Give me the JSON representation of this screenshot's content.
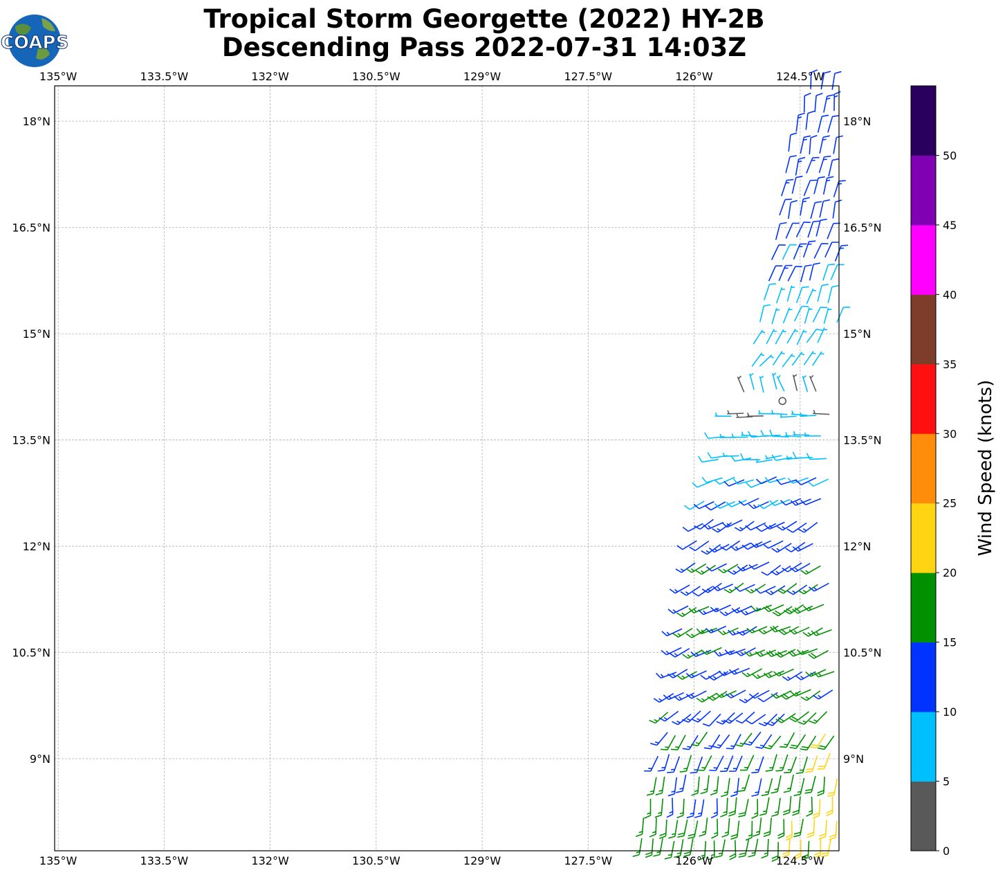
{
  "title_line1": "Tropical Storm Georgette (2022) HY-2B",
  "title_line2": "Descending Pass 2022-07-31 14:03Z",
  "logo_text": "COAPS",
  "map": {
    "lon_range": [
      -135.05,
      -123.95
    ],
    "lat_range": [
      7.7,
      18.5
    ],
    "lon_ticks": [
      {
        "value": -135.0,
        "label": "135°W"
      },
      {
        "value": -133.5,
        "label": "133.5°W"
      },
      {
        "value": -132.0,
        "label": "132°W"
      },
      {
        "value": -130.5,
        "label": "130.5°W"
      },
      {
        "value": -129.0,
        "label": "129°W"
      },
      {
        "value": -127.5,
        "label": "127.5°W"
      },
      {
        "value": -126.0,
        "label": "126°W"
      },
      {
        "value": -124.5,
        "label": "124.5°W"
      }
    ],
    "lat_ticks": [
      {
        "value": 18.0,
        "label": "18°N"
      },
      {
        "value": 16.5,
        "label": "16.5°N"
      },
      {
        "value": 15.0,
        "label": "15°N"
      },
      {
        "value": 13.5,
        "label": "13.5°N"
      },
      {
        "value": 12.0,
        "label": "12°N"
      },
      {
        "value": 10.5,
        "label": "10.5°N"
      },
      {
        "value": 9.0,
        "label": "9°N"
      }
    ],
    "gridlines": true
  },
  "colorbar": {
    "label": "Wind Speed (knots)",
    "range": [
      0,
      55
    ],
    "ticks": [
      0,
      5,
      10,
      15,
      20,
      25,
      30,
      35,
      40,
      45,
      50
    ],
    "bins": [
      {
        "min": 0,
        "max": 5,
        "color": "#595959"
      },
      {
        "min": 5,
        "max": 10,
        "color": "#00bfff"
      },
      {
        "min": 10,
        "max": 15,
        "color": "#0033ff"
      },
      {
        "min": 15,
        "max": 20,
        "color": "#009000"
      },
      {
        "min": 20,
        "max": 25,
        "color": "#ffd413"
      },
      {
        "min": 25,
        "max": 30,
        "color": "#ff8c0a"
      },
      {
        "min": 30,
        "max": 35,
        "color": "#ff1010"
      },
      {
        "min": 35,
        "max": 40,
        "color": "#7e3c2a"
      },
      {
        "min": 40,
        "max": 45,
        "color": "#ff00ff"
      },
      {
        "min": 45,
        "max": 50,
        "color": "#8000b3"
      },
      {
        "min": 50,
        "max": 55,
        "color": "#2a005e"
      }
    ]
  },
  "chart_data": {
    "type": "scatter",
    "description_of_marks": "wind barbs",
    "swath": [
      {
        "lat": 18.45,
        "lon_min": -124.35,
        "lon_max": -124.0,
        "speed": 12,
        "dir": 185
      },
      {
        "lat": 18.15,
        "lon_min": -124.45,
        "lon_max": -124.0,
        "speed": 12,
        "dir": 185
      },
      {
        "lat": 17.85,
        "lon_min": -124.55,
        "lon_max": -124.0,
        "speed": 12,
        "dir": 190
      },
      {
        "lat": 17.55,
        "lon_min": -124.65,
        "lon_max": -124.0,
        "speed": 12,
        "dir": 190
      },
      {
        "lat": 17.25,
        "lon_min": -124.7,
        "lon_max": -124.0,
        "speed": 12,
        "dir": 195
      },
      {
        "lat": 16.95,
        "lon_min": -124.75,
        "lon_max": -124.0,
        "speed": 12,
        "dir": 195
      },
      {
        "lat": 16.65,
        "lon_min": -124.8,
        "lon_max": -124.0,
        "speed": 12,
        "dir": 195
      },
      {
        "lat": 16.35,
        "lon_min": -124.85,
        "lon_max": -124.0,
        "speed": 12,
        "dir": 200
      },
      {
        "lat": 16.05,
        "lon_min": -124.9,
        "lon_max": -124.0,
        "speed": 11,
        "dir": 200
      },
      {
        "lat": 15.75,
        "lon_min": -124.95,
        "lon_max": -124.0,
        "speed": 11,
        "dir": 200
      },
      {
        "lat": 15.45,
        "lon_min": -125.0,
        "lon_max": -124.0,
        "speed": 8,
        "dir": 200
      },
      {
        "lat": 15.15,
        "lon_min": -125.05,
        "lon_max": -124.0,
        "speed": 8,
        "dir": 200
      },
      {
        "lat": 14.85,
        "lon_min": -125.15,
        "lon_max": -124.2,
        "speed": 7,
        "dir": 210
      },
      {
        "lat": 14.55,
        "lon_min": -125.2,
        "lon_max": -124.2,
        "speed": 7,
        "dir": 220
      },
      {
        "lat": 14.2,
        "lon_min": -125.3,
        "lon_max": -124.2,
        "speed": 5,
        "dir": 160
      },
      {
        "lat": 13.85,
        "lon_min": -125.45,
        "lon_max": -124.1,
        "speed": 6,
        "dir": 90
      },
      {
        "lat": 13.55,
        "lon_min": -125.55,
        "lon_max": -124.1,
        "speed": 7,
        "dir": 90
      },
      {
        "lat": 13.25,
        "lon_min": -125.65,
        "lon_max": -124.1,
        "speed": 8,
        "dir": 85
      },
      {
        "lat": 12.95,
        "lon_min": -125.75,
        "lon_max": -124.0,
        "speed": 9,
        "dir": 70
      },
      {
        "lat": 12.65,
        "lon_min": -125.85,
        "lon_max": -124.1,
        "speed": 11,
        "dir": 65
      },
      {
        "lat": 12.35,
        "lon_min": -125.9,
        "lon_max": -124.2,
        "speed": 13,
        "dir": 60
      },
      {
        "lat": 12.05,
        "lon_min": -125.95,
        "lon_max": -124.2,
        "speed": 13,
        "dir": 60
      },
      {
        "lat": 11.75,
        "lon_min": -126.0,
        "lon_max": -124.1,
        "speed": 14,
        "dir": 60
      },
      {
        "lat": 11.45,
        "lon_min": -126.05,
        "lon_max": -124.1,
        "speed": 14,
        "dir": 60
      },
      {
        "lat": 11.15,
        "lon_min": -126.1,
        "lon_max": -124.1,
        "speed": 15,
        "dir": 62
      },
      {
        "lat": 10.85,
        "lon_min": -126.15,
        "lon_max": -124.0,
        "speed": 15,
        "dir": 65
      },
      {
        "lat": 10.55,
        "lon_min": -126.2,
        "lon_max": -124.0,
        "speed": 15,
        "dir": 65
      },
      {
        "lat": 10.25,
        "lon_min": -126.25,
        "lon_max": -124.0,
        "speed": 14,
        "dir": 65
      },
      {
        "lat": 9.95,
        "lon_min": -126.3,
        "lon_max": -124.0,
        "speed": 14,
        "dir": 60
      },
      {
        "lat": 9.65,
        "lon_min": -126.35,
        "lon_max": -124.0,
        "speed": 14,
        "dir": 50
      },
      {
        "lat": 9.35,
        "lon_min": -126.4,
        "lon_max": -124.0,
        "speed": 15,
        "dir": 35
      },
      {
        "lat": 9.05,
        "lon_min": -126.5,
        "lon_max": -124.0,
        "speed": 15,
        "dir": 20
      },
      {
        "lat": 8.75,
        "lon_min": -126.55,
        "lon_max": -124.0,
        "speed": 15,
        "dir": 10
      },
      {
        "lat": 8.45,
        "lon_min": -126.6,
        "lon_max": -124.0,
        "speed": 16,
        "dir": 5
      },
      {
        "lat": 8.15,
        "lon_min": -126.7,
        "lon_max": -124.0,
        "speed": 17,
        "dir": 5
      },
      {
        "lat": 7.85,
        "lon_min": -126.75,
        "lon_max": -124.0,
        "speed": 17,
        "dir": 5
      }
    ],
    "calm_circle": {
      "lat": 14.05,
      "lon": -124.75
    }
  }
}
